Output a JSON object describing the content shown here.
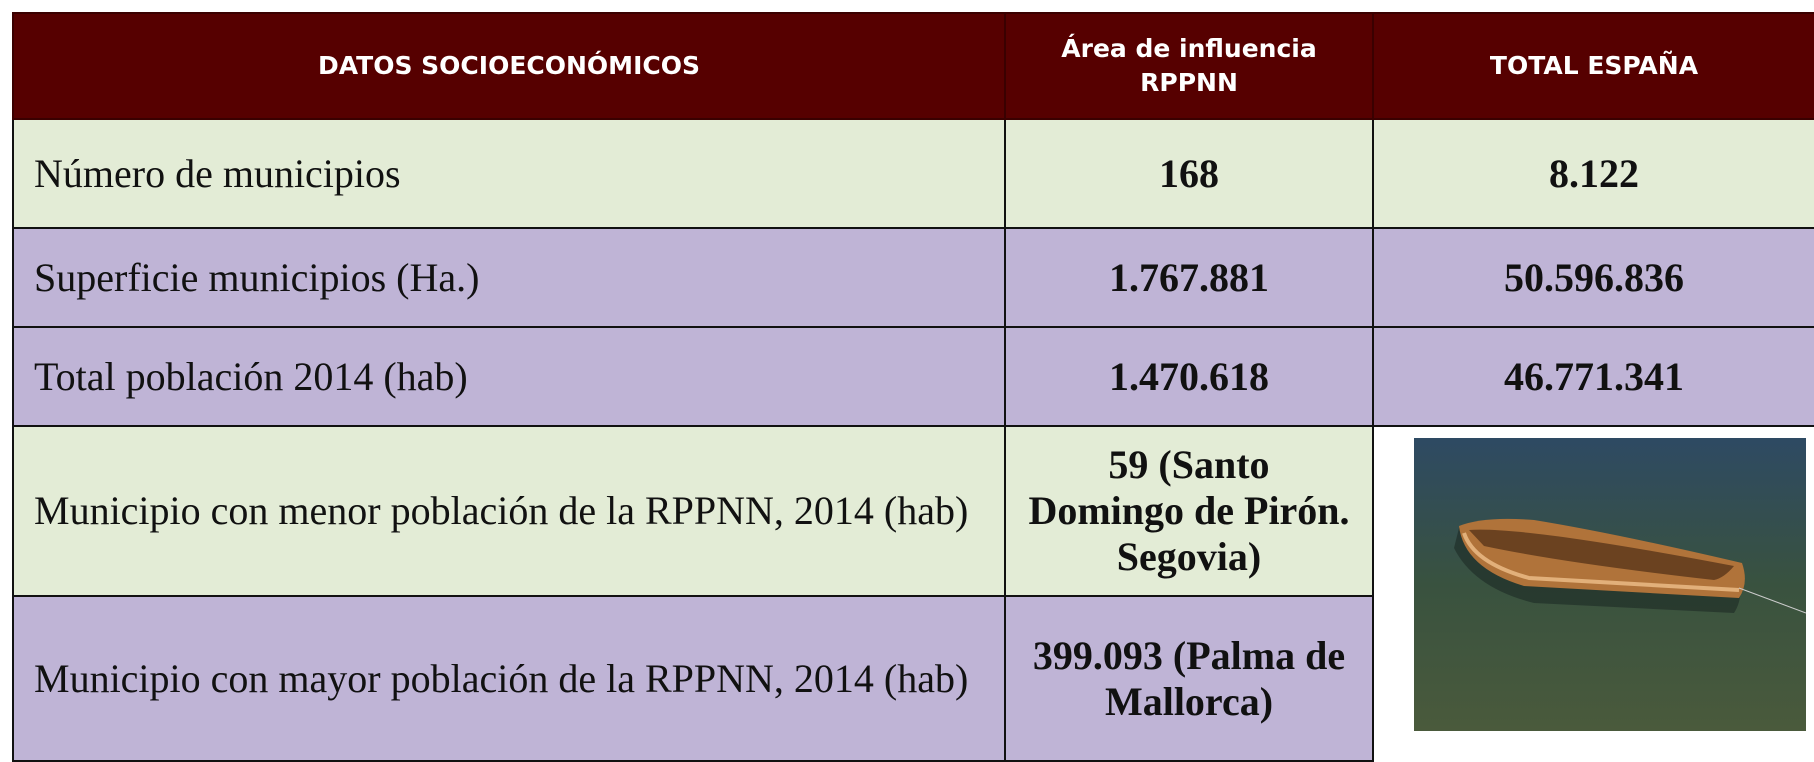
{
  "table": {
    "header": [
      "DATOS SOCIOECONÓMICOS",
      "Área de influencia RPPNN",
      "TOTAL ESPAÑA"
    ],
    "rows": [
      [
        "Número de municipios",
        "168",
        "8.122"
      ],
      [
        "Superficie municipios (Ha.)",
        "1.767.881",
        "50.596.836"
      ],
      [
        "Total población 2014 (hab)",
        "1.470.618",
        "46.771.341"
      ],
      [
        "Municipio con menor población de la RPPNN, 2014 (hab)",
        "59 (Santo Domingo de Pirón. Segovia)"
      ],
      [
        "Municipio con mayor población de la RPPNN, 2014 (hab)",
        "399.093 (Palma de Mallorca)"
      ]
    ]
  }
}
